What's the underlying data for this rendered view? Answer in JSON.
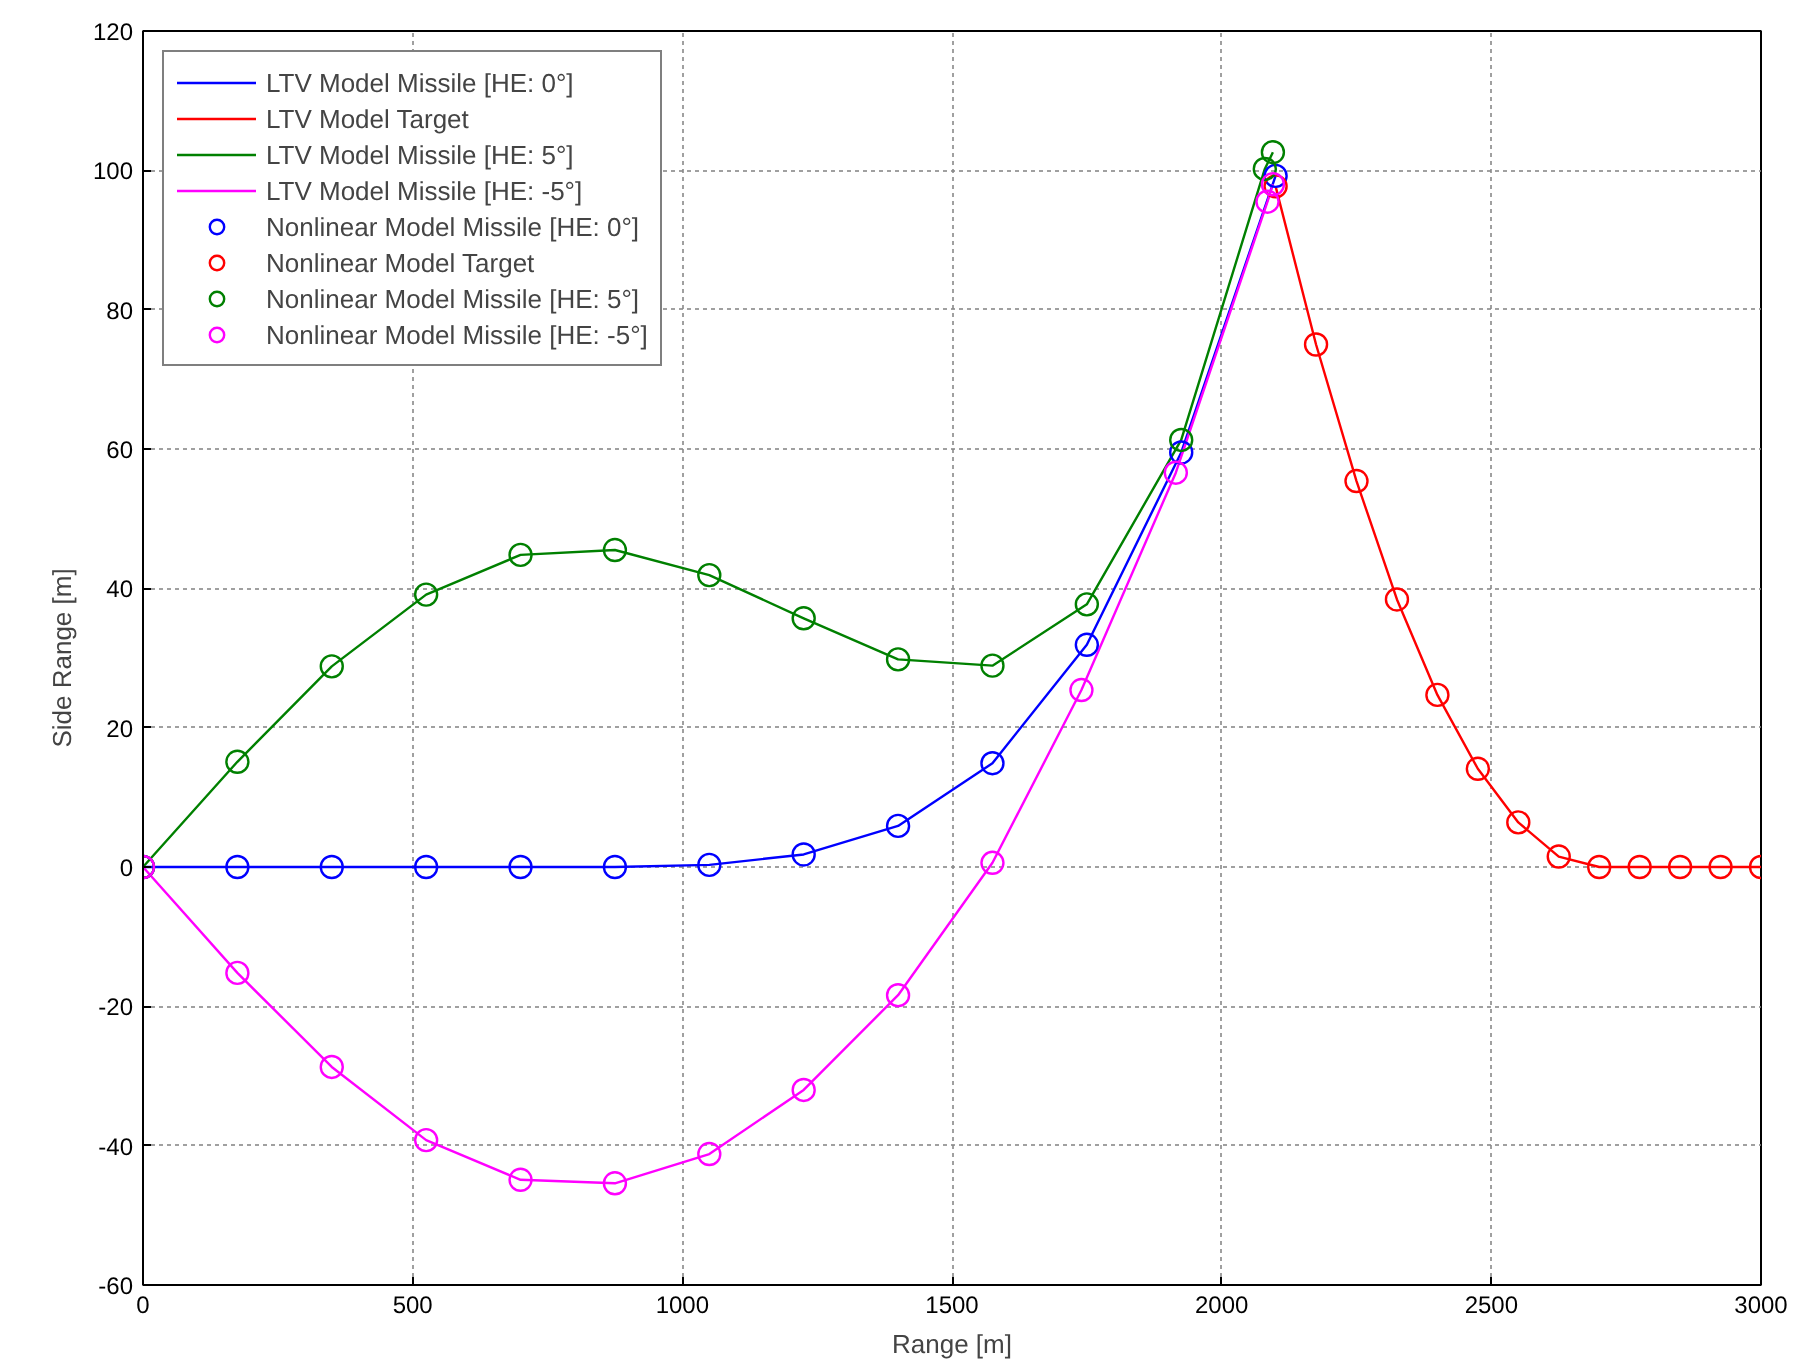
{
  "chart_data": {
    "type": "line",
    "xlabel": "Range [m]",
    "ylabel": "Side Range [m]",
    "xlim": [
      0,
      3000
    ],
    "xticks": [
      0,
      500,
      1000,
      1500,
      2000,
      2500,
      3000
    ],
    "ylim": [
      -60,
      120
    ],
    "yticks": [
      -60,
      -40,
      -20,
      0,
      20,
      40,
      60,
      80,
      100,
      120
    ],
    "grid": true,
    "legend": "top left",
    "series": [
      {
        "name": "LTV Model Missile [HE: 0°]",
        "marker": "none",
        "color": "#0000ff",
        "x": [
          0,
          175,
          350,
          525,
          700,
          875,
          1050,
          1225,
          1400,
          1575,
          1750,
          1925,
          2100
        ],
        "values": [
          0,
          0,
          0,
          0,
          0,
          0,
          0.3,
          1.8,
          5.9,
          14.9,
          31.9,
          59.5,
          99.2
        ]
      },
      {
        "name": "LTV Model Target",
        "marker": "none",
        "color": "#ff0000",
        "x": [
          2100,
          2175,
          2250,
          2325,
          2400,
          2475,
          2550,
          2625,
          2700,
          2775,
          2850,
          2925,
          3000
        ],
        "values": [
          97.7,
          75.0,
          55.4,
          38.4,
          24.7,
          14.1,
          6.4,
          1.5,
          0,
          0,
          0,
          0,
          0
        ]
      },
      {
        "name": "LTV Model Missile [HE: 5°]",
        "marker": "none",
        "color": "#008000",
        "x": [
          0,
          175,
          350,
          525,
          700,
          875,
          1050,
          1225,
          1400,
          1575,
          1750,
          1925,
          2080,
          2095
        ],
        "values": [
          0,
          15.1,
          28.8,
          39.1,
          44.8,
          45.5,
          41.9,
          35.7,
          29.8,
          28.9,
          37.7,
          61.3,
          100.2,
          102.6
        ]
      },
      {
        "name": "LTV Model Missile [HE: -5°]",
        "marker": "none",
        "color": "#ff00ff",
        "x": [
          0,
          175,
          350,
          525,
          700,
          875,
          1050,
          1225,
          1400,
          1575,
          1740,
          1915,
          2085,
          2095
        ],
        "values": [
          0,
          -15.2,
          -28.7,
          -39.2,
          -44.9,
          -45.4,
          -41.2,
          -32.0,
          -18.4,
          0.6,
          25.4,
          56.6,
          95.5,
          98.0
        ]
      },
      {
        "name": "Nonlinear Model Missile [HE: 0°]",
        "type": "scatter",
        "marker": "circle",
        "color": "#0000ff",
        "x": [
          0,
          175,
          350,
          525,
          700,
          875,
          1050,
          1225,
          1400,
          1575,
          1750,
          1925,
          2100
        ],
        "values": [
          0,
          0,
          0,
          0,
          0,
          0,
          0.3,
          1.8,
          5.9,
          14.9,
          31.9,
          59.5,
          99.2
        ]
      },
      {
        "name": "Nonlinear Model Target",
        "type": "scatter",
        "marker": "circle",
        "color": "#ff0000",
        "x": [
          2100,
          2175,
          2250,
          2325,
          2400,
          2475,
          2550,
          2625,
          2700,
          2775,
          2850,
          2925,
          3000
        ],
        "values": [
          97.7,
          75.0,
          55.4,
          38.4,
          24.7,
          14.1,
          6.4,
          1.5,
          0,
          0,
          0,
          0,
          0
        ]
      },
      {
        "name": "Nonlinear Model Missile [HE: 5°]",
        "type": "scatter",
        "marker": "circle",
        "color": "#008000",
        "x": [
          0,
          175,
          350,
          525,
          700,
          875,
          1050,
          1225,
          1400,
          1575,
          1750,
          1925,
          2080,
          2095
        ],
        "values": [
          0,
          15.1,
          28.8,
          39.1,
          44.8,
          45.5,
          41.9,
          35.7,
          29.8,
          28.9,
          37.7,
          61.3,
          100.2,
          102.6
        ]
      },
      {
        "name": "Nonlinear Model Missile [HE: -5°]",
        "type": "scatter",
        "marker": "circle",
        "color": "#ff00ff",
        "x": [
          0,
          175,
          350,
          525,
          700,
          875,
          1050,
          1225,
          1400,
          1575,
          1740,
          1915,
          2085,
          2095
        ],
        "values": [
          0,
          -15.2,
          -28.7,
          -39.2,
          -44.9,
          -45.4,
          -41.2,
          -32.0,
          -18.4,
          0.6,
          25.4,
          56.6,
          95.5,
          98.0
        ]
      }
    ]
  }
}
